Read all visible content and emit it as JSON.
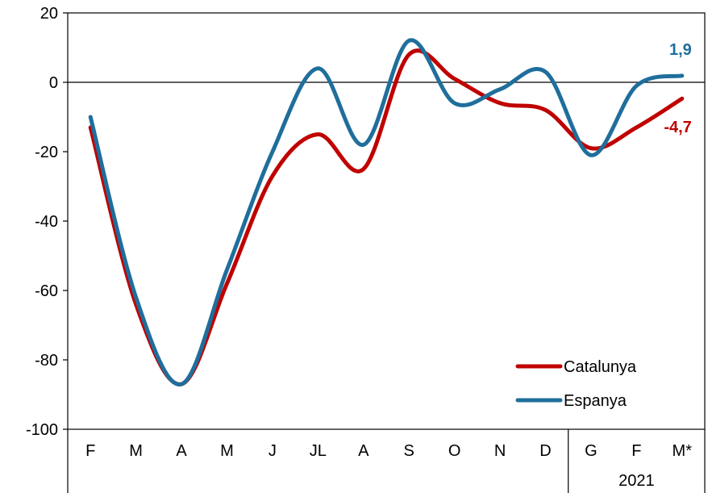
{
  "chart_data": {
    "type": "line",
    "categories": [
      "F",
      "M",
      "A",
      "M",
      "J",
      "JL",
      "A",
      "S",
      "O",
      "N",
      "D",
      "G",
      "F",
      "M*"
    ],
    "year_group": {
      "label": "2021",
      "from_index": 11,
      "to_index": 13
    },
    "series": [
      {
        "name": "Catalunya",
        "color": "#C00000",
        "values": [
          -13,
          -64,
          -87,
          -58,
          -27,
          -15,
          -25,
          8,
          1,
          -6,
          -8,
          -19,
          -13,
          -4.7
        ],
        "end_label": "-4,7"
      },
      {
        "name": "Espanya",
        "color": "#1F6E9C",
        "values": [
          -10,
          -62,
          -87,
          -54,
          -20,
          4,
          -18,
          12,
          -6,
          -2,
          3,
          -21,
          -1,
          1.9
        ],
        "end_label": "1,9"
      }
    ],
    "ylim": [
      -100,
      20
    ],
    "yticks": [
      20,
      0,
      -20,
      -40,
      -60,
      -80,
      -100
    ],
    "ytick_labels": [
      "20",
      "0",
      "-20",
      "-40",
      "-60",
      "-80",
      "-100"
    ],
    "zero_line": true,
    "grid": false,
    "legend_position": "bottom-right",
    "title": "",
    "xlabel": "",
    "ylabel": ""
  }
}
